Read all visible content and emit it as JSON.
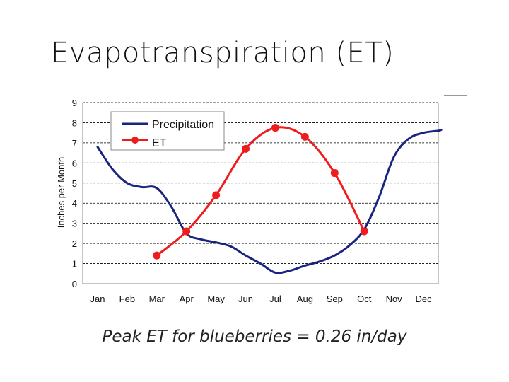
{
  "slide": {
    "title": "Evapotranspiration (ET)",
    "caption": "Peak ET for blueberries = 0.26 in/day"
  },
  "chart_data": {
    "type": "line",
    "title": "",
    "xlabel": "",
    "ylabel": "Inches per Month",
    "categories": [
      "Jan",
      "Feb",
      "Mar",
      "Apr",
      "May",
      "Jun",
      "Jul",
      "Aug",
      "Sep",
      "Oct",
      "Nov",
      "Dec"
    ],
    "ylim": [
      0,
      9
    ],
    "yticks": [
      0,
      1,
      2,
      3,
      4,
      5,
      6,
      7,
      8,
      9
    ],
    "grid": "horizontal dashed",
    "legend_position": "top-left",
    "series": [
      {
        "name": "Precipitation",
        "color": "#1a237e",
        "marker": "none",
        "points": [
          [
            0.0,
            6.8
          ],
          [
            0.5,
            5.7
          ],
          [
            1.0,
            5.0
          ],
          [
            1.5,
            4.8
          ],
          [
            2.0,
            4.75
          ],
          [
            2.5,
            3.8
          ],
          [
            3.0,
            2.5
          ],
          [
            3.5,
            2.2
          ],
          [
            4.0,
            2.05
          ],
          [
            4.5,
            1.85
          ],
          [
            5.0,
            1.4
          ],
          [
            5.5,
            1.0
          ],
          [
            6.0,
            0.55
          ],
          [
            6.5,
            0.65
          ],
          [
            7.0,
            0.9
          ],
          [
            7.5,
            1.1
          ],
          [
            8.0,
            1.4
          ],
          [
            8.5,
            1.9
          ],
          [
            9.0,
            2.7
          ],
          [
            9.5,
            4.3
          ],
          [
            10.0,
            6.3
          ],
          [
            10.5,
            7.2
          ],
          [
            11.0,
            7.5
          ],
          [
            11.5,
            7.6
          ],
          [
            11.6,
            7.65
          ]
        ]
      },
      {
        "name": "ET",
        "color": "#ee1c1c",
        "marker": "circle",
        "points": [
          [
            2.0,
            1.4
          ],
          [
            3.0,
            2.6
          ],
          [
            4.0,
            4.4
          ],
          [
            5.0,
            6.7
          ],
          [
            6.0,
            7.75
          ],
          [
            7.0,
            7.3
          ],
          [
            8.0,
            5.5
          ],
          [
            9.0,
            2.6
          ]
        ]
      }
    ]
  }
}
